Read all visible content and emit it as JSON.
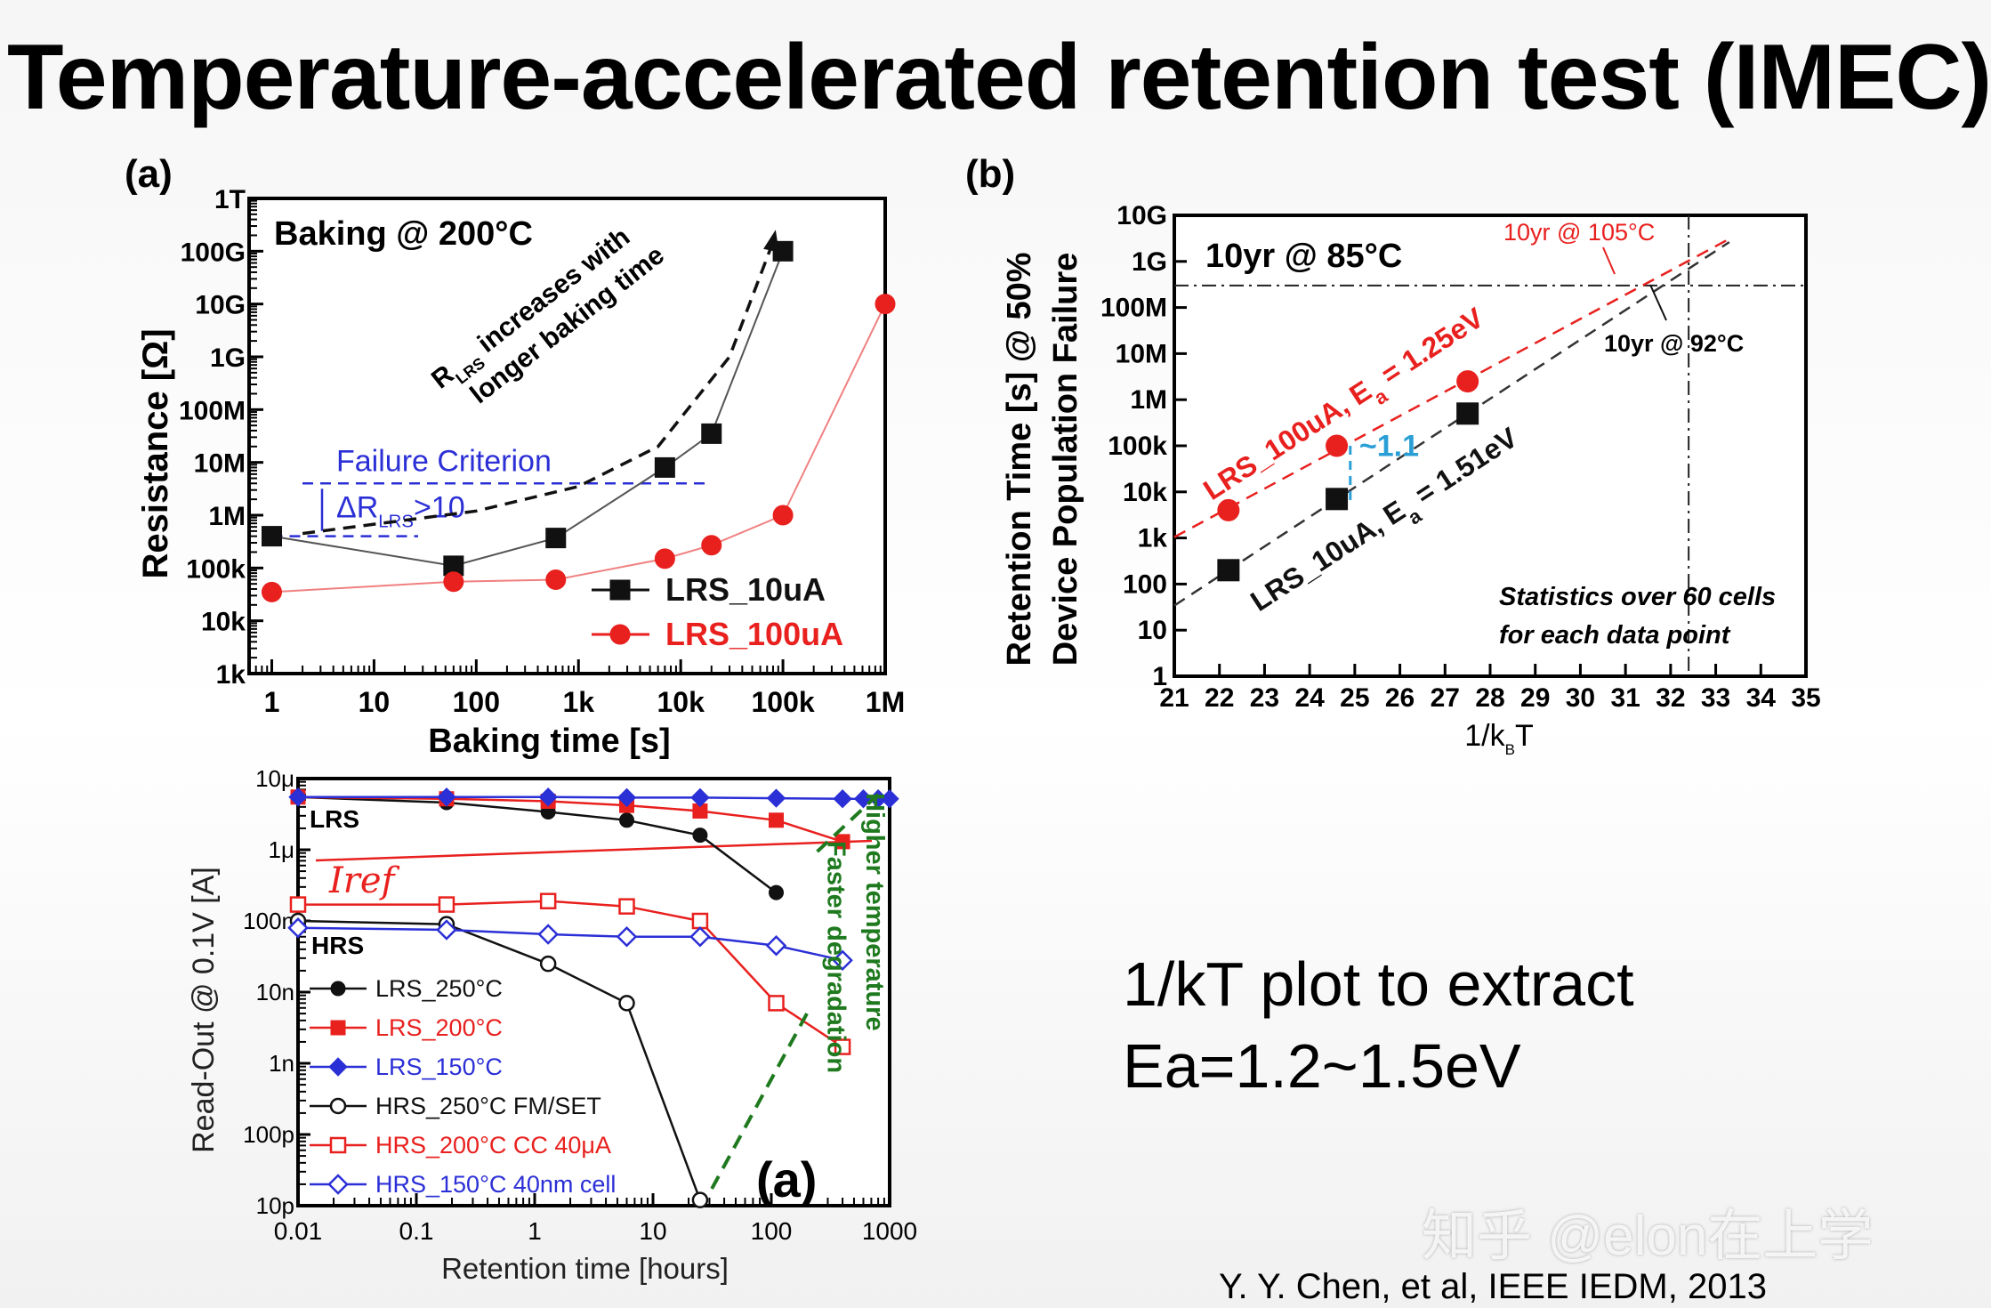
{
  "title": "Temperature-accelerated retention test (IMEC)",
  "note": {
    "line1": "1/kT plot to extract",
    "line2": "Ea=1.2~1.5eV"
  },
  "watermark": "知乎 @elon在上学",
  "citation": "Y. Y. Chen, et al, IEEE IEDM, 2013",
  "colors": {
    "red": "#e8201e",
    "blue": "#2b2fd6",
    "black": "#111111",
    "green": "#1f7a1f",
    "cyan": "#2a9fd6"
  },
  "chart_data": [
    {
      "id": "a",
      "type": "line",
      "panel_label": "(a)",
      "title": "Baking @ 200°C",
      "xlabel": "Baking time [s]",
      "ylabel": "Resistance [Ω]",
      "x_scale": "log",
      "y_scale": "log",
      "xlim": [
        0.6,
        1000000
      ],
      "ylim": [
        1000,
        1000000000000
      ],
      "xticks": [
        1,
        10,
        100,
        1000,
        10000,
        100000,
        1000000
      ],
      "xtick_labels": [
        "1",
        "10",
        "100",
        "1k",
        "10k",
        "100k",
        "1M"
      ],
      "yticks": [
        1000,
        10000,
        100000,
        1000000,
        10000000,
        100000000,
        1000000000,
        10000000000,
        100000000000,
        1000000000000
      ],
      "ytick_labels": [
        "1k",
        "10k",
        "100k",
        "1M",
        "10M",
        "100M",
        "1G",
        "10G",
        "100G",
        "1T"
      ],
      "series": [
        {
          "name": "LRS_10uA",
          "color": "#111111",
          "marker": "square",
          "x": [
            1,
            60,
            600,
            7000,
            20000,
            100000
          ],
          "y": [
            400000,
            110000,
            370000,
            8000000,
            35000000,
            100000000000
          ]
        },
        {
          "name": "LRS_100uA",
          "color": "#e8201e",
          "marker": "circle",
          "x": [
            1,
            60,
            600,
            7000,
            20000,
            100000,
            1000000
          ],
          "y": [
            35000,
            55000,
            60000,
            150000,
            270000,
            1000000,
            10000000000
          ]
        }
      ],
      "annotations": {
        "failure_criterion": "Failure Criterion",
        "delta_main": "ΔR",
        "delta_sub": "LRS",
        "delta_rest": ">10",
        "trend_r": "R",
        "trend_sub": "LRS",
        "trend_line1": " increases with",
        "trend_line2": "longer baking time"
      }
    },
    {
      "id": "b",
      "type": "scatter",
      "panel_label": "(b)",
      "title": "10yr @ 85°C",
      "xlabel": "1/k",
      "xlabel_sub": "B",
      "xlabel_tail": "T",
      "ylabel": "Retention Time [s] @ 50%",
      "ylabel2": "Device Population Failure",
      "xlim": [
        21,
        35
      ],
      "ylim": [
        1,
        10000000000
      ],
      "xticks": [
        21,
        22,
        23,
        24,
        25,
        26,
        27,
        28,
        29,
        30,
        31,
        32,
        33,
        34,
        35
      ],
      "xtick_labels": [
        "21",
        "22",
        "23",
        "24",
        "25",
        "26",
        "27",
        "28",
        "29",
        "30",
        "31",
        "32",
        "33",
        "34",
        "35"
      ],
      "yticks": [
        1,
        10,
        100,
        1000,
        10000,
        100000,
        1000000,
        10000000,
        100000000,
        1000000000,
        10000000000
      ],
      "ytick_labels": [
        "1",
        "10",
        "100",
        "1k",
        "10k",
        "100k",
        "1M",
        "10M",
        "100M",
        "1G",
        "10G"
      ],
      "series": [
        {
          "name": "LRS_100uA, Ea = 1.25eV",
          "color": "#e8201e",
          "marker": "circle",
          "x": [
            22.2,
            24.6,
            27.5
          ],
          "y": [
            4000,
            100000,
            2500000
          ]
        },
        {
          "name": "LRS_10uA, Ea = 1.51eV",
          "color": "#111111",
          "marker": "square",
          "x": [
            22.2,
            24.6,
            27.5
          ],
          "y": [
            200,
            7000,
            500000
          ]
        }
      ],
      "reference_lines": {
        "ten_year_seconds": 300000000,
        "x_85C": 32.4
      },
      "annotations": {
        "t105": "10yr @ 105°C",
        "t92": "10yr @ 92°C",
        "gap": "~1.1",
        "stats_line1": "Statistics over 60 cells",
        "stats_line2": "for each data point",
        "red_fit_main": "LRS_100uA, E",
        "red_fit_sub": "a",
        "red_fit_tail": " = 1.25eV",
        "black_fit_main": "LRS_10uA, E",
        "black_fit_sub": "a",
        "black_fit_tail": " = 1.51eV"
      }
    },
    {
      "id": "c",
      "type": "line",
      "panel_label": "(a)",
      "xlabel": "Retention time [hours]",
      "ylabel": "Read-Out @ 0.1V [A]",
      "x_scale": "log",
      "y_scale": "log",
      "xlim": [
        0.01,
        1000
      ],
      "ylim": [
        1e-11,
        1e-05
      ],
      "xticks": [
        0.01,
        0.1,
        1,
        10,
        100,
        1000
      ],
      "xtick_labels": [
        "0.01",
        "0.1",
        "1",
        "10",
        "100",
        "1000"
      ],
      "yticks": [
        1e-11,
        1e-10,
        1e-09,
        1e-08,
        1e-07,
        1e-06,
        1e-05
      ],
      "ytick_labels": [
        "10p",
        "100p",
        "1n",
        "10n",
        "100n",
        "1μ",
        "10μ"
      ],
      "series": [
        {
          "name": "LRS_250°C",
          "color": "#111111",
          "marker": "circle",
          "x": [
            0.01,
            0.18,
            1.3,
            6,
            25,
            110
          ],
          "y": [
            5.5e-06,
            4.6e-06,
            3.4e-06,
            2.6e-06,
            1.6e-06,
            2.5e-07
          ]
        },
        {
          "name": "LRS_200°C",
          "color": "#e8201e",
          "marker": "square",
          "x": [
            0.01,
            0.18,
            1.3,
            6,
            25,
            110,
            400
          ],
          "y": [
            5.5e-06,
            5.2e-06,
            4.8e-06,
            4.2e-06,
            3.5e-06,
            2.6e-06,
            1.3e-06
          ]
        },
        {
          "name": "LRS_150°C",
          "color": "#2b2fd6",
          "marker": "diamond",
          "x": [
            0.01,
            0.18,
            1.3,
            6,
            25,
            110,
            400,
            600,
            800,
            1000
          ],
          "y": [
            5.5e-06,
            5.5e-06,
            5.5e-06,
            5.4e-06,
            5.4e-06,
            5.3e-06,
            5.2e-06,
            5.2e-06,
            5.2e-06,
            5.2e-06
          ]
        },
        {
          "name": "HRS_250°C FM/SET",
          "color": "#111111",
          "marker": "circle-open",
          "x": [
            0.01,
            0.18,
            1.3,
            6,
            25
          ],
          "y": [
            1e-07,
            9e-08,
            2.5e-08,
            7e-09,
            1.2e-11
          ]
        },
        {
          "name": "HRS_200°C CC 40μA",
          "color": "#e8201e",
          "marker": "square-open",
          "x": [
            0.01,
            0.18,
            1.3,
            6,
            25,
            110,
            400
          ],
          "y": [
            1.7e-07,
            1.7e-07,
            1.9e-07,
            1.6e-07,
            1e-07,
            7e-09,
            1.7e-09
          ]
        },
        {
          "name": "HRS_150°C 40nm cell",
          "color": "#2b2fd6",
          "marker": "diamond-open",
          "x": [
            0.01,
            0.18,
            1.3,
            6,
            25,
            110,
            400
          ],
          "y": [
            8e-08,
            7.5e-08,
            6.5e-08,
            6e-08,
            6e-08,
            4.5e-08,
            2.8e-08
          ]
        }
      ],
      "annotations": {
        "lrs": "LRS",
        "hrs": "HRS",
        "iref": "Iref",
        "faster": "Faster degradation",
        "higher": "Higher temperature"
      }
    }
  ]
}
